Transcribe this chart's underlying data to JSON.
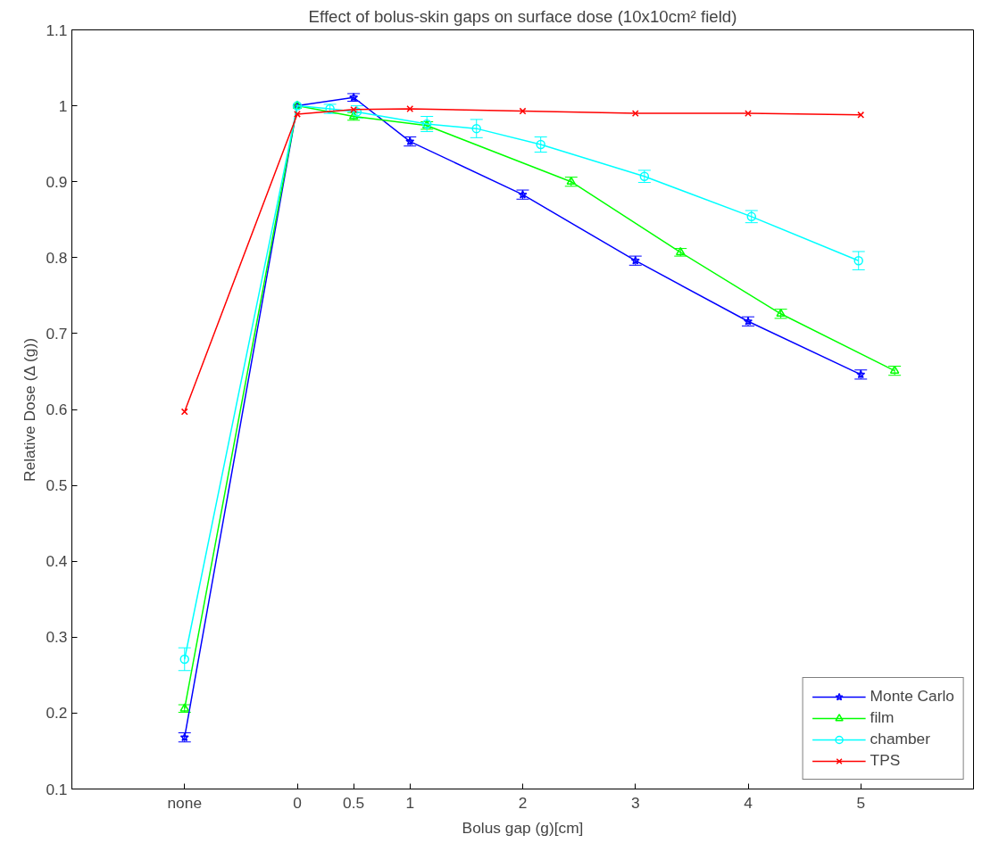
{
  "chart_data": {
    "type": "line",
    "title": "Effect of bolus-skin gaps on surface dose (10x10cm² field)",
    "xlabel": "Bolus gap (g)[cm]",
    "ylabel": "Relative Dose (Δ (g))",
    "xlim": [
      -2,
      6
    ],
    "ylim": [
      0.1,
      1.1
    ],
    "xticks": [
      {
        "value": -1,
        "label": "none"
      },
      0,
      0.5,
      1,
      2,
      3,
      4,
      5
    ],
    "yticks": [
      0.1,
      0.2,
      0.3,
      0.4,
      0.5,
      0.6,
      0.7,
      0.8,
      0.9,
      1,
      1.1
    ],
    "grid": false,
    "legend": "bottom right",
    "line_style": "solid",
    "series": [
      {
        "name": "Monte Carlo",
        "color": "#0000ff",
        "marker": "star",
        "x": [
          -1,
          0,
          0.5,
          1,
          2,
          3,
          4,
          5
        ],
        "values": [
          0.168,
          1.0,
          1.011,
          0.953,
          0.883,
          0.796,
          0.716,
          0.646
        ],
        "errors": [
          0.006,
          null,
          0.005,
          0.006,
          0.006,
          0.006,
          0.006,
          0.006
        ]
      },
      {
        "name": "film",
        "color": "#00ff00",
        "marker": "triangle",
        "x": [
          -1,
          0,
          0.5,
          1.15,
          2.43,
          3.4,
          4.29,
          5.3
        ],
        "values": [
          0.206,
          1.0,
          0.986,
          0.974,
          0.9,
          0.807,
          0.726,
          0.651
        ],
        "errors": [
          0.005,
          null,
          0.005,
          0.005,
          0.006,
          0.005,
          0.006,
          0.006
        ]
      },
      {
        "name": "chamber",
        "color": "#00ffff",
        "marker": "circle",
        "x": [
          -1,
          0,
          0.29,
          0.53,
          1.15,
          1.59,
          2.16,
          3.08,
          4.03,
          4.98
        ],
        "values": [
          0.271,
          1.0,
          0.996,
          0.992,
          0.976,
          0.97,
          0.949,
          0.907,
          0.854,
          0.796
        ],
        "errors": [
          0.015,
          null,
          0.006,
          0.008,
          0.01,
          0.012,
          0.01,
          0.008,
          0.008,
          0.012
        ]
      },
      {
        "name": "TPS",
        "color": "#ff0000",
        "marker": "cross",
        "x": [
          -1,
          0,
          0.5,
          1,
          2,
          3,
          4,
          5
        ],
        "values": [
          0.597,
          0.989,
          0.995,
          0.996,
          0.993,
          0.99,
          0.99,
          0.988
        ]
      }
    ]
  }
}
